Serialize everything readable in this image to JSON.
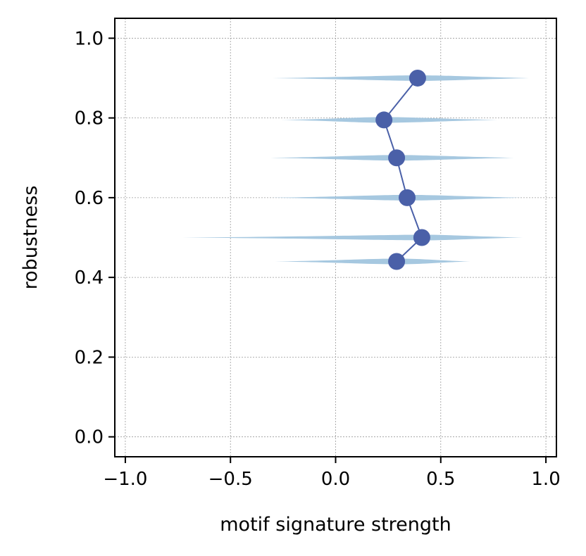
{
  "chart_data": {
    "type": "violin",
    "title": "",
    "xlabel": "motif signature strength",
    "ylabel": "robustness",
    "xlim": [
      -1.05,
      1.05
    ],
    "ylim": [
      -0.05,
      1.05
    ],
    "x_ticks": [
      -1.0,
      -0.5,
      0.0,
      0.5,
      1.0
    ],
    "x_tick_labels": [
      "−1.0",
      "−0.5",
      "0.0",
      "0.5",
      "1.0"
    ],
    "y_ticks": [
      0.0,
      0.2,
      0.4,
      0.6,
      0.8,
      1.0
    ],
    "y_tick_labels": [
      "0.0",
      "0.2",
      "0.4",
      "0.6",
      "0.8",
      "1.0"
    ],
    "grid": true,
    "legend": "none",
    "colors": {
      "violin": "#a6c8e0",
      "mean_line": "#4a60a8",
      "mean_marker": "#4a60a8"
    },
    "series": [
      {
        "robustness": 0.9,
        "mean": 0.39,
        "min": -0.3,
        "max": 0.92
      },
      {
        "robustness": 0.795,
        "mean": 0.23,
        "min": -0.26,
        "max": 0.77
      },
      {
        "robustness": 0.7,
        "mean": 0.29,
        "min": -0.31,
        "max": 0.85
      },
      {
        "robustness": 0.6,
        "mean": 0.34,
        "min": -0.31,
        "max": 0.89
      },
      {
        "robustness": 0.5,
        "mean": 0.41,
        "min": -0.73,
        "max": 0.89
      },
      {
        "robustness": 0.44,
        "mean": 0.29,
        "min": -0.29,
        "max": 0.64
      }
    ]
  }
}
